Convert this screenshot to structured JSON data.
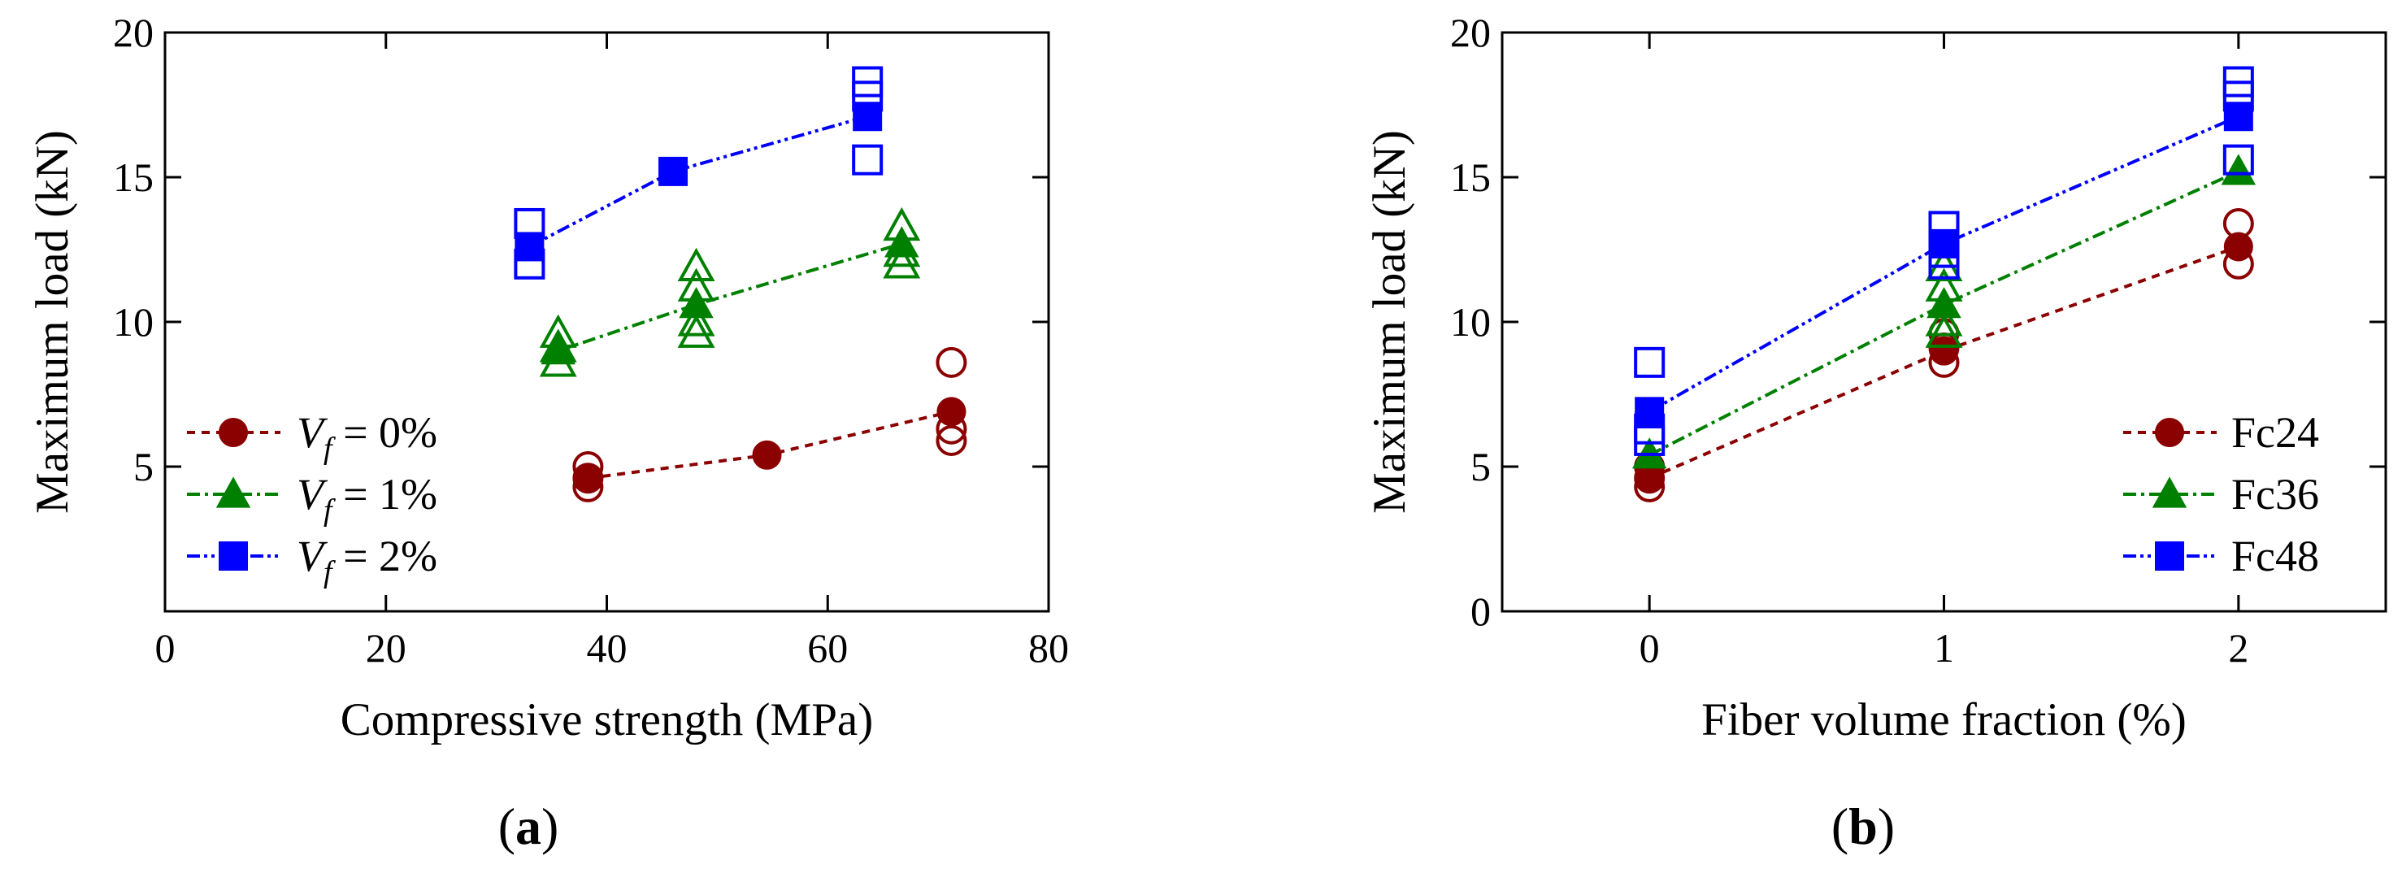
{
  "chart_data": [
    {
      "type": "scatter",
      "panel_label": "(a)",
      "panel_letter": "a",
      "xlabel": "Compressive strength (MPa)",
      "ylabel": "Maximum load (kN)",
      "xlim": [
        0,
        80
      ],
      "ylim": [
        0,
        20
      ],
      "xticks": [
        0,
        20,
        40,
        60,
        80
      ],
      "yticks": [
        5,
        10,
        15,
        20
      ],
      "legend_position": "bottom-left",
      "series": [
        {
          "name": "Vf = 0%",
          "legend_parts": [
            "V",
            "f",
            " = 0%"
          ],
          "color": "#8b0000",
          "marker": "circle",
          "dash": "10,8",
          "mean_x": [
            38.3,
            54.5,
            71.2
          ],
          "mean_y": [
            4.6,
            5.4,
            6.9
          ],
          "specimens": [
            [
              38.3,
              4.3
            ],
            [
              38.3,
              4.6
            ],
            [
              38.3,
              5.0
            ],
            [
              71.2,
              5.9
            ],
            [
              71.2,
              6.3
            ],
            [
              71.2,
              8.6
            ]
          ]
        },
        {
          "name": "Vf = 1%",
          "legend_parts": [
            "V",
            "f",
            " = 1%"
          ],
          "color": "#008000",
          "marker": "triangle",
          "dash": "16,6,4,6",
          "mean_x": [
            35.6,
            48.1,
            66.7
          ],
          "mean_y": [
            9.0,
            10.6,
            12.7
          ],
          "specimens": [
            [
              35.6,
              8.6
            ],
            [
              35.6,
              9.1
            ],
            [
              35.6,
              9.6
            ],
            [
              48.1,
              9.6
            ],
            [
              48.1,
              10.0
            ],
            [
              48.1,
              11.2
            ],
            [
              48.1,
              11.9
            ],
            [
              66.7,
              12.0
            ],
            [
              66.7,
              12.4
            ],
            [
              66.7,
              13.3
            ]
          ]
        },
        {
          "name": "Vf = 2%",
          "legend_parts": [
            "V",
            "f",
            " = 2%"
          ],
          "color": "#0000ff",
          "marker": "square",
          "dash": "16,5,4,5,4,5",
          "mean_x": [
            33.0,
            46.0,
            63.6
          ],
          "mean_y": [
            12.6,
            15.2,
            17.1
          ],
          "specimens": [
            [
              33.0,
              12.0
            ],
            [
              33.0,
              13.4
            ],
            [
              63.6,
              15.6
            ],
            [
              63.6,
              17.8
            ],
            [
              63.6,
              18.3
            ]
          ]
        }
      ]
    },
    {
      "type": "scatter",
      "panel_label": "(b)",
      "panel_letter": "b",
      "xlabel": "Fiber volume fraction (%)",
      "ylabel": "Maximum load (kN)",
      "xlim": [
        -0.5,
        2.5
      ],
      "ylim": [
        0,
        20
      ],
      "xticks": [
        0,
        1,
        2
      ],
      "yticks": [
        0,
        5,
        10,
        15,
        20
      ],
      "legend_position": "bottom-right",
      "series": [
        {
          "name": "Fc24",
          "legend_parts": [
            "Fc24"
          ],
          "color": "#8b0000",
          "marker": "circle",
          "dash": "10,8",
          "mean_x": [
            0,
            1,
            2
          ],
          "mean_y": [
            4.6,
            9.0,
            12.6
          ],
          "specimens": [
            [
              0,
              4.3
            ],
            [
              0,
              4.6
            ],
            [
              0,
              5.0
            ],
            [
              1,
              8.6
            ],
            [
              1,
              9.1
            ],
            [
              1,
              9.6
            ],
            [
              2,
              12.0
            ],
            [
              2,
              13.4
            ]
          ]
        },
        {
          "name": "Fc36",
          "legend_parts": [
            "Fc36"
          ],
          "color": "#008000",
          "marker": "triangle",
          "dash": "16,6,4,6",
          "mean_x": [
            0,
            1,
            2
          ],
          "mean_y": [
            5.4,
            10.6,
            15.2
          ],
          "specimens": [
            [
              1,
              9.6
            ],
            [
              1,
              10.0
            ],
            [
              1,
              11.2
            ],
            [
              1,
              11.9
            ]
          ]
        },
        {
          "name": "Fc48",
          "legend_parts": [
            "Fc48"
          ],
          "color": "#0000ff",
          "marker": "square",
          "dash": "16,5,4,5,4,5",
          "mean_x": [
            0,
            1,
            2
          ],
          "mean_y": [
            6.9,
            12.7,
            17.1
          ],
          "specimens": [
            [
              0,
              5.9
            ],
            [
              0,
              6.3
            ],
            [
              0,
              8.6
            ],
            [
              1,
              12.0
            ],
            [
              1,
              12.4
            ],
            [
              1,
              13.3
            ],
            [
              2,
              15.6
            ],
            [
              2,
              17.8
            ],
            [
              2,
              18.3
            ]
          ]
        }
      ]
    }
  ]
}
